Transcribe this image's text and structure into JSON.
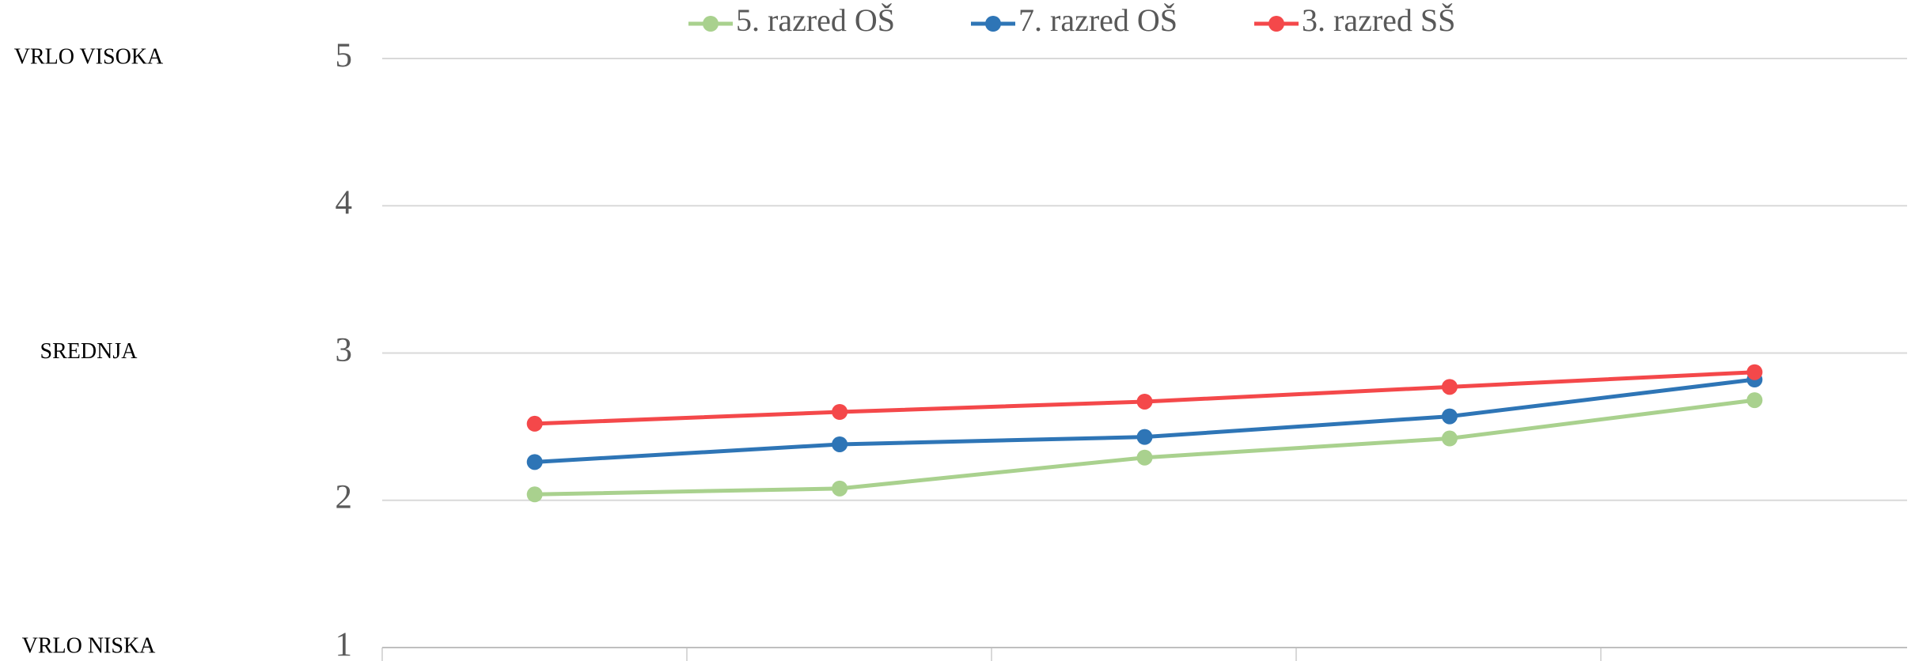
{
  "chart_data": {
    "type": "line",
    "categories": [
      null,
      null,
      null,
      null,
      null
    ],
    "series": [
      {
        "name": "5. razred OŠ",
        "color": "#a9d18e",
        "values": [
          2.04,
          2.08,
          2.29,
          2.42,
          2.68
        ]
      },
      {
        "name": "7. razred OŠ",
        "color": "#2e75b6",
        "values": [
          2.26,
          2.38,
          2.43,
          2.57,
          2.82
        ]
      },
      {
        "name": "3. razred SŠ",
        "color": "#f4484a",
        "values": [
          2.52,
          2.6,
          2.67,
          2.77,
          2.87
        ]
      }
    ],
    "ylim": [
      1,
      5
    ],
    "yticks": [
      1,
      2,
      3,
      4,
      5
    ],
    "grid": true,
    "legend": "top",
    "annotations": [
      {
        "text": "VRLO VISOKA",
        "y": 5
      },
      {
        "text": "SREDNJA",
        "y": 3
      },
      {
        "text": "VRLO NISKA",
        "y": 1
      }
    ]
  }
}
